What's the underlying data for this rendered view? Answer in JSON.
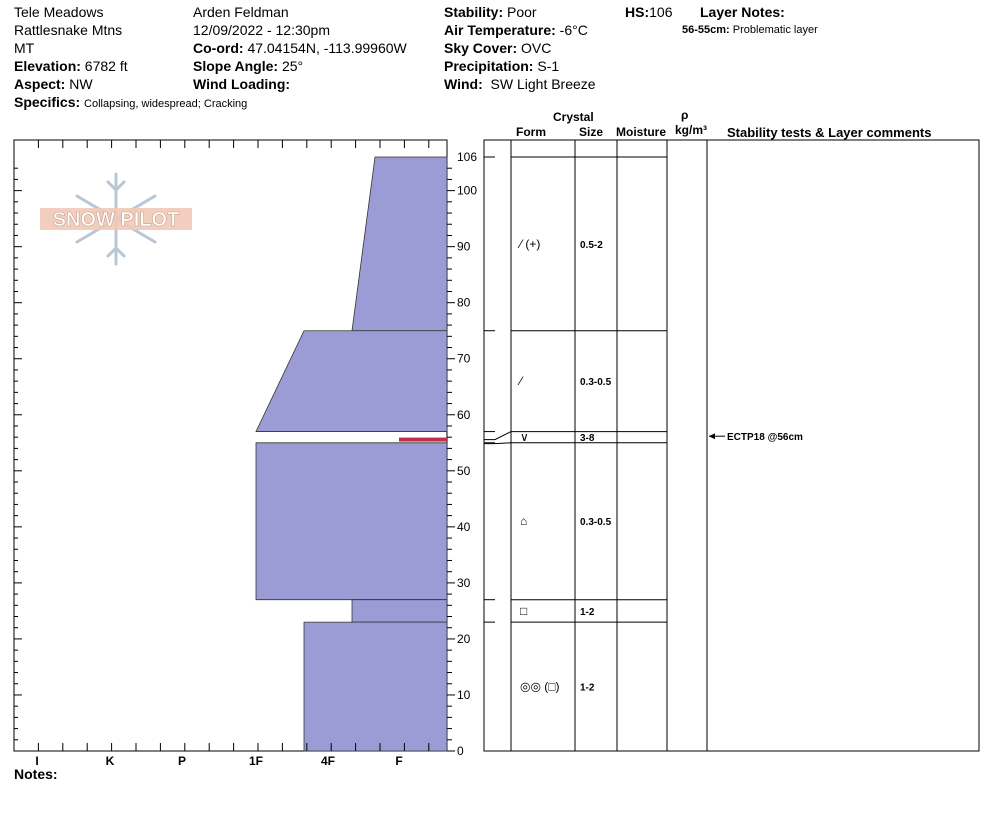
{
  "header": {
    "location": "Tele Meadows",
    "range": "Rattlesnake Mtns",
    "state": "MT",
    "elevation_label": "Elevation:",
    "elevation": "6782 ft",
    "aspect_label": "Aspect:",
    "aspect": "NW",
    "specifics_label": "Specifics:",
    "specifics": "Collapsing, widespread; Cracking",
    "observer": "Arden Feldman",
    "datetime": "12/09/2022 - 12:30pm",
    "coord_label": "Co-ord:",
    "coord": "47.04154N, -113.99960W",
    "slope_label": "Slope Angle:",
    "slope": "25°",
    "wind_loading_label": "Wind Loading:",
    "stability_label": "Stability:",
    "stability": "Poor",
    "air_temp_label": "Air Temperature:",
    "air_temp": "-6°C",
    "sky_label": "Sky Cover:",
    "sky": "OVC",
    "precip_label": "Precipitation:",
    "precip": "S-1",
    "wind_label": "Wind:",
    "wind": "SW Light Breeze",
    "hs_label": "HS:",
    "hs": "106",
    "layer_notes_label": "Layer Notes:",
    "layer_note_depth": "56-55cm:",
    "layer_note_text": "Problematic layer"
  },
  "logo_text": "SNOW PILOT",
  "columns": {
    "crystal": "Crystal",
    "form": "Form",
    "size": "Size",
    "moisture": "Moisture",
    "rho": "ρ",
    "density_unit": "kg/m³",
    "stability_comments": "Stability tests & Layer comments"
  },
  "notes_label": "Notes:",
  "colors": {
    "layer_fill": "#9b9bd6",
    "weak_layer": "#c0304a"
  },
  "chart_data": {
    "type": "snow-profile",
    "ylim": [
      0,
      106
    ],
    "y_ticks": [
      0,
      10,
      20,
      30,
      40,
      50,
      60,
      70,
      80,
      90,
      100,
      106
    ],
    "hardness_scale": [
      "I",
      "K",
      "P",
      "1F",
      "4F",
      "F"
    ],
    "layers": [
      {
        "top": 106,
        "bottom": 75,
        "hardness_top": "F-",
        "hardness_bottom": "4F+",
        "form": "⁄ (+)",
        "size": "0.5-2"
      },
      {
        "top": 75,
        "bottom": 57,
        "hardness_top": "4F-",
        "hardness_bottom": "1F",
        "form": "⁄",
        "size": "0.3-0.5"
      },
      {
        "top": 57,
        "bottom": 55,
        "hardness_top": "F",
        "hardness_bottom": "F",
        "form": "∨",
        "size": "3-8"
      },
      {
        "top": 55,
        "bottom": 27,
        "hardness_top": "1F",
        "hardness_bottom": "1F",
        "form": "⌂",
        "size": "0.3-0.5"
      },
      {
        "top": 27,
        "bottom": 23,
        "hardness_top": "4F+",
        "hardness_bottom": "4F+",
        "form": "□",
        "size": "1-2"
      },
      {
        "top": 23,
        "bottom": 0,
        "hardness_top": "4F-",
        "hardness_bottom": "4F-",
        "form": "◎◎ (□)",
        "size": "1-2"
      }
    ],
    "stability_tests": [
      {
        "depth": 56,
        "label": "ECTP18 @56cm"
      }
    ]
  }
}
